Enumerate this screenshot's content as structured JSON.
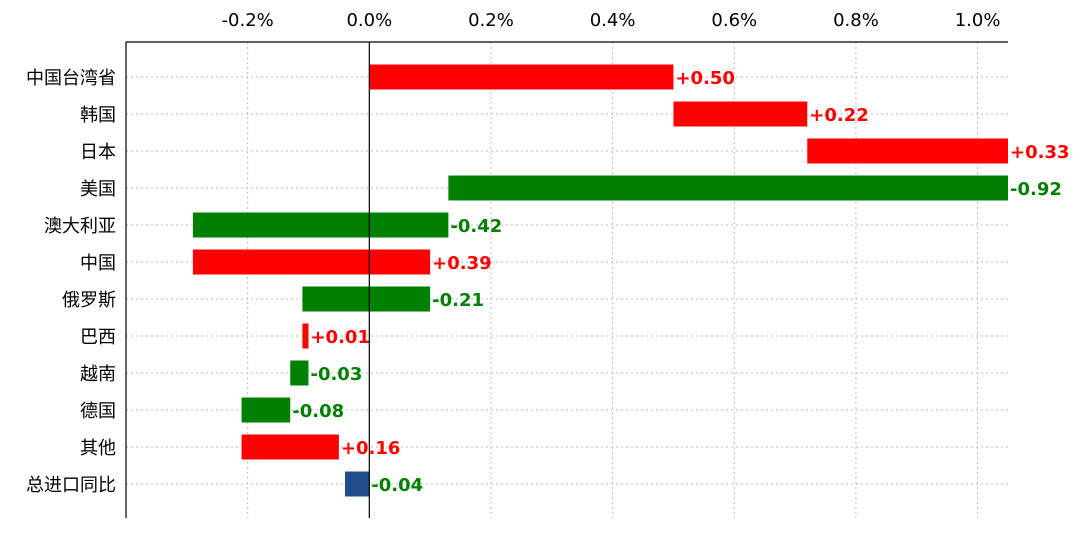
{
  "chart_data": {
    "type": "bar",
    "orientation": "horizontal",
    "style": "waterfall",
    "title": "",
    "xlabel": "",
    "ylabel": "",
    "x_axis_position": "top",
    "xlim": [
      -0.4,
      1.05
    ],
    "x_ticks": [
      -0.2,
      0.0,
      0.2,
      0.4,
      0.6,
      0.8,
      1.0
    ],
    "x_tick_labels": [
      "-0.2%",
      "0.0%",
      "0.2%",
      "0.4%",
      "0.6%",
      "0.8%",
      "1.0%"
    ],
    "grid": true,
    "categories": [
      "中国台湾省",
      "韩国",
      "日本",
      "美国",
      "澳大利亚",
      "中国",
      "俄罗斯",
      "巴西",
      "越南",
      "德国",
      "其他",
      "总进口同比"
    ],
    "values": [
      0.5,
      0.22,
      0.33,
      -0.92,
      -0.42,
      0.39,
      -0.21,
      0.01,
      -0.03,
      -0.08,
      0.16,
      -0.04
    ],
    "value_labels": [
      "+0.50",
      "+0.22",
      "+0.33",
      "-0.92",
      "-0.42",
      "+0.39",
      "-0.21",
      "+0.01",
      "-0.03",
      "-0.08",
      "+0.16",
      "-0.04"
    ],
    "total_index": 11,
    "colors": {
      "increase": "#ff0000",
      "decrease": "#008000",
      "total": "#1f4e8c",
      "increase_label": "#ff0000",
      "decrease_label": "#008000",
      "total_label": "#008000",
      "grid": "#bbbbbb",
      "axis": "#000000"
    }
  }
}
